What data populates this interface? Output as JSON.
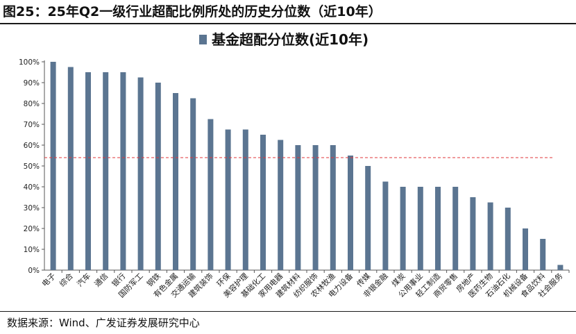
{
  "figure": {
    "title": "图25：25年Q2一级行业超配比例所处的历史分位数（近10年）",
    "source": "数据来源：Wind、广发证券发展研究中心"
  },
  "chart_data": {
    "type": "bar",
    "legend": {
      "label": "基金超配分位数(近10年)",
      "placement": "top-center"
    },
    "categories": [
      "电子",
      "综合",
      "汽车",
      "通信",
      "银行",
      "国防军工",
      "钢铁",
      "有色金属",
      "交通运输",
      "建筑装饰",
      "环保",
      "美容护理",
      "基础化工",
      "家用电器",
      "建筑材料",
      "纺织服饰",
      "农林牧渔",
      "电力设备",
      "传媒",
      "非银金融",
      "煤炭",
      "公用事业",
      "轻工制造",
      "商贸零售",
      "房地产",
      "医药生物",
      "石油石化",
      "机械设备",
      "食品饮料",
      "社会服务"
    ],
    "series": [
      {
        "name": "基金超配分位数(近10年)",
        "values": [
          100,
          97.5,
          95,
          95,
          95,
          92.5,
          90,
          85,
          82.5,
          72.5,
          67.5,
          67.5,
          65,
          62.5,
          60,
          60,
          60,
          55,
          50,
          42.5,
          40,
          40,
          40,
          40,
          35,
          32.5,
          30,
          20,
          15,
          2.5
        ]
      }
    ],
    "ylim": [
      0,
      100
    ],
    "yticks": [
      "0%",
      "10%",
      "20%",
      "30%",
      "40%",
      "50%",
      "60%",
      "70%",
      "80%",
      "90%",
      "100%"
    ],
    "reference_line": {
      "value": 54,
      "style": "dashed",
      "color": "#e0353a"
    },
    "grid": false,
    "colors": {
      "bar": "#5b7591",
      "axis": "#555555"
    }
  }
}
